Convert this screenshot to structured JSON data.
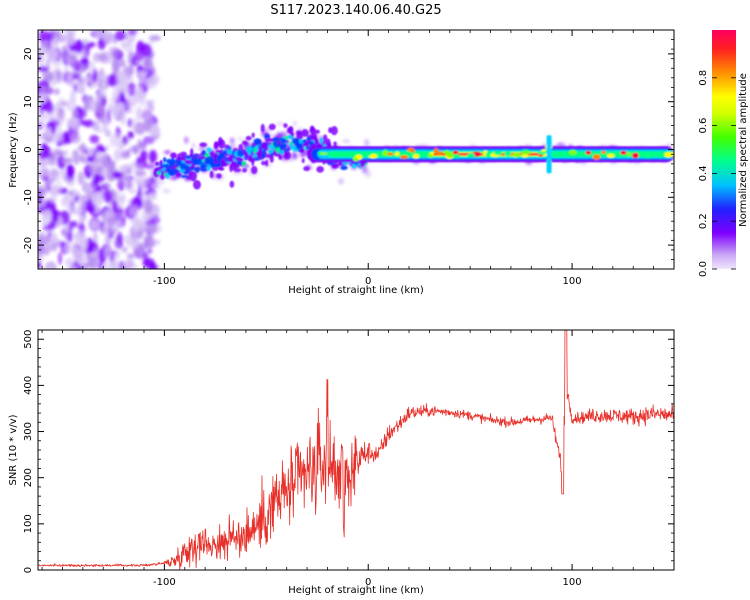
{
  "figure": {
    "title": "S117.2023.140.06.40.G25"
  },
  "chart_data": [
    {
      "type": "heatmap",
      "xlabel": "Height of straight line (km)",
      "ylabel": "Frequency (Hz)",
      "xlim": [
        -162,
        150
      ],
      "ylim": [
        -25,
        25
      ],
      "xticks": [
        -100,
        0,
        100
      ],
      "yticks": [
        -20,
        -10,
        0,
        10,
        20
      ],
      "xtick_labels": [
        "-100",
        "0",
        "100"
      ],
      "ytick_labels": [
        "-20",
        "-10",
        "0",
        "10",
        "20"
      ],
      "grid": false,
      "ridge": {
        "x": [
          -105,
          -95,
          -85,
          -75,
          -65,
          -55,
          -45,
          -35,
          -25,
          -15,
          -5,
          5,
          20,
          40,
          60,
          80,
          90,
          100,
          110,
          120,
          130,
          140,
          150
        ],
        "y": [
          -4.5,
          -3.5,
          -3,
          -2,
          -1.5,
          0,
          1,
          1.5,
          0,
          -1.5,
          -2,
          -1,
          -1,
          -1,
          -1,
          -1,
          0,
          -1,
          -1,
          -1,
          -1,
          -1,
          -1
        ]
      },
      "colorbar": {
        "label": "Normalized spectral amplitude",
        "range": [
          0,
          1
        ],
        "ticks": [
          0,
          0.2,
          0.4,
          0.6,
          0.8
        ],
        "tick_labels": [
          "0.0",
          "0.2",
          "0.4",
          "0.6",
          "0.8"
        ],
        "colors": [
          "#efe6fb",
          "#7f00ff",
          "#0040ff",
          "#00d0ff",
          "#00ff80",
          "#80ff00",
          "#ffff00",
          "#ff8000",
          "#ff0040"
        ]
      }
    },
    {
      "type": "line",
      "xlabel": "Height of straight line (km)",
      "ylabel": "SNR (10 * v/v)",
      "xlim": [
        -162,
        150
      ],
      "ylim": [
        0,
        520
      ],
      "xticks": [
        -100,
        0,
        100
      ],
      "yticks": [
        0,
        100,
        200,
        300,
        400,
        500
      ],
      "xtick_labels": [
        "-100",
        "0",
        "100"
      ],
      "ytick_labels": [
        "0",
        "100",
        "200",
        "300",
        "400",
        "500"
      ],
      "grid": false,
      "series": [
        {
          "color": "#e8302a",
          "x": [
            -162,
            -150,
            -140,
            -130,
            -120,
            -110,
            -100,
            -95,
            -90,
            -85,
            -80,
            -75,
            -70,
            -65,
            -60,
            -55,
            -50,
            -45,
            -40,
            -35,
            -30,
            -25,
            -20,
            -15,
            -10,
            -5,
            0,
            5,
            10,
            15,
            20,
            30,
            40,
            50,
            60,
            70,
            80,
            90,
            95,
            97,
            100,
            105,
            110,
            120,
            130,
            140,
            150
          ],
          "y": [
            10,
            10,
            10,
            10,
            10,
            10,
            15,
            20,
            40,
            55,
            60,
            55,
            65,
            70,
            80,
            95,
            120,
            150,
            170,
            190,
            205,
            220,
            240,
            220,
            200,
            240,
            255,
            250,
            295,
            315,
            340,
            345,
            342,
            335,
            325,
            320,
            325,
            330,
            220,
            400,
            330,
            330,
            335,
            335,
            332,
            338,
            335
          ],
          "noise": [
            3,
            3,
            3,
            3,
            3,
            3,
            5,
            20,
            40,
            45,
            40,
            45,
            50,
            55,
            65,
            75,
            85,
            95,
            100,
            110,
            115,
            125,
            130,
            130,
            80,
            60,
            30,
            25,
            25,
            22,
            20,
            15,
            12,
            12,
            12,
            12,
            12,
            15,
            25,
            25,
            15,
            15,
            20,
            20,
            22,
            25,
            25
          ]
        }
      ]
    }
  ]
}
